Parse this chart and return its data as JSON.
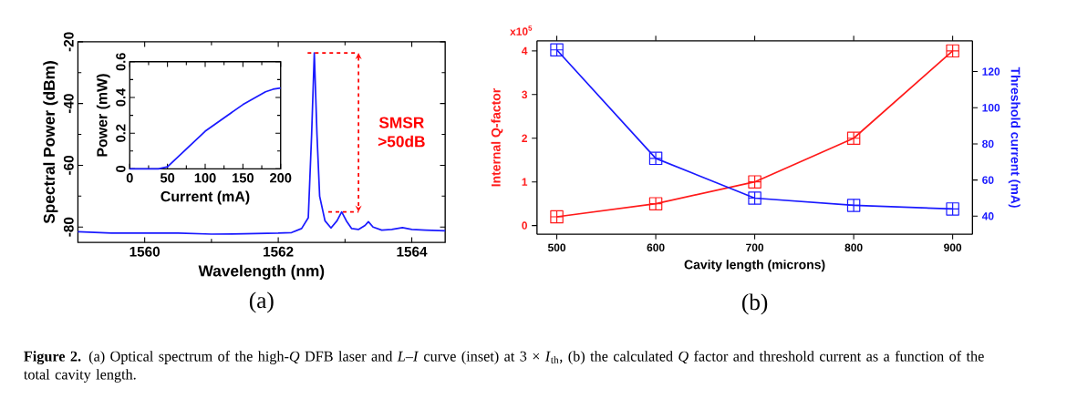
{
  "chart_data": [
    {
      "type": "line",
      "xlabel": "Wavelength (nm)",
      "ylabel": "Spectral Power (dBm)",
      "x": [
        1559,
        1559.5,
        1560,
        1560.5,
        1561,
        1561.5,
        1562,
        1562.2,
        1562.35,
        1562.45,
        1562.5,
        1562.54,
        1562.58,
        1562.62,
        1562.7,
        1562.79,
        1562.88,
        1562.95,
        1563.02,
        1563.1,
        1563.2,
        1563.3,
        1563.35,
        1563.42,
        1563.55,
        1563.7,
        1563.86,
        1564,
        1564.2,
        1564.5
      ],
      "series": [
        {
          "color": "#1a1aff",
          "values": [
            -81.5,
            -82,
            -82,
            -82,
            -82.3,
            -82.2,
            -82,
            -81.8,
            -80.5,
            -77,
            -50,
            -23.6,
            -50,
            -70,
            -78,
            -80.3,
            -78,
            -75.1,
            -78,
            -80.5,
            -80.8,
            -79.5,
            -78.3,
            -80,
            -81,
            -80.8,
            -80.2,
            -80.8,
            -81,
            -81.2
          ]
        }
      ],
      "xlim": [
        1559,
        1564.5
      ],
      "ylim": [
        -85,
        -20
      ],
      "xticks": [
        1560,
        1562,
        1564
      ],
      "yticks": [
        -80,
        -60,
        -40,
        -20
      ],
      "line_style": "solid",
      "annotations": [
        "SMSR >50dB",
        "(a)"
      ]
    },
    {
      "type": "line",
      "xlabel": "Current (mA)",
      "ylabel": "Power (mW)",
      "x": [
        0,
        38,
        50,
        100,
        150,
        180,
        190,
        200
      ],
      "series": [
        {
          "color": "#1a1aff",
          "values": [
            0,
            0,
            0.012,
            0.211,
            0.36,
            0.432,
            0.446,
            0.453
          ]
        }
      ],
      "xlim": [
        0,
        200
      ],
      "ylim": [
        0,
        0.6
      ],
      "xticks": [
        0,
        50,
        100,
        150,
        200
      ],
      "yticks": [
        0,
        0.2,
        0.4,
        0.6
      ],
      "line_style": "solid"
    },
    {
      "type": "line",
      "xlabel": "Cavity length (microns)",
      "ylabel": "Internal Q-factor",
      "y2label": "Threshold current (mA)",
      "x": [
        500,
        600,
        700,
        800,
        900
      ],
      "series": [
        {
          "color": "#ff1a1a",
          "values": [
            0.2,
            0.5,
            1.0,
            2.0,
            4.0
          ]
        },
        {
          "color": "#1a1aff",
          "axis": "y2",
          "values": [
            132,
            72,
            50,
            46,
            44
          ]
        }
      ],
      "xlim": [
        480,
        920
      ],
      "ylim": [
        -0.2,
        4.23
      ],
      "y2lim": [
        30,
        137
      ],
      "xticks": [
        500,
        600,
        700,
        800,
        900
      ],
      "yticks": [
        0,
        1,
        2,
        3,
        4
      ],
      "y2ticks": [
        40,
        60,
        80,
        100,
        120
      ],
      "marker": "square",
      "line_style": "solid",
      "annotations": [
        "x10$^{5}$",
        "(b)",
        "**Figure 2.** (a) Optical spectrum of the high-*Q* DFB laser and *L*–*I* curve (inset) at 3 × *I*$_{th}$, (b) the calculated *Q* factor and threshold current as a function of the total cavity length."
      ]
    }
  ]
}
